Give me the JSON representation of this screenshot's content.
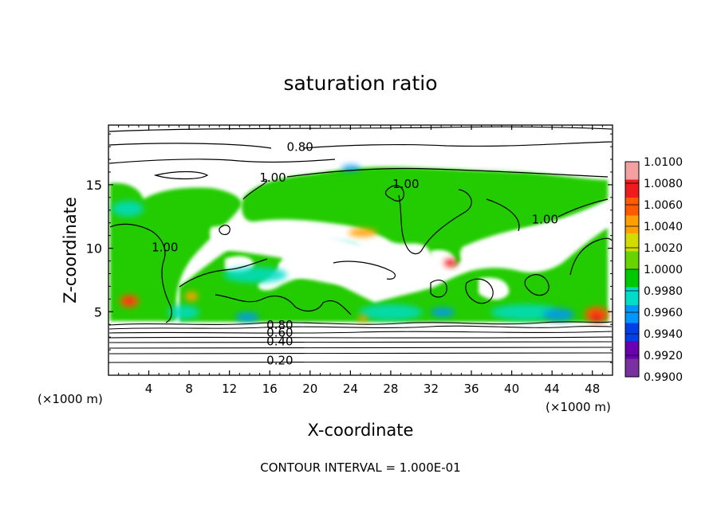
{
  "chart_data": {
    "type": "heatmap",
    "title": "saturation ratio",
    "xlabel": "X-coordinate",
    "ylabel": "Z-coordinate",
    "x_unit_left": "(×1000 m)",
    "x_unit_right": "(×1000 m)",
    "footer": "CONTOUR INTERVAL = 1.000E-01",
    "xlim": [
      0,
      50
    ],
    "ylim": [
      0,
      19.7
    ],
    "x_ticks": [
      "4",
      "8",
      "12",
      "16",
      "20",
      "24",
      "28",
      "32",
      "36",
      "40",
      "44",
      "48"
    ],
    "x_tick_values": [
      4,
      8,
      12,
      16,
      20,
      24,
      28,
      32,
      36,
      40,
      44,
      48
    ],
    "y_ticks": [
      "5",
      "10",
      "15"
    ],
    "y_tick_values": [
      5,
      10,
      15
    ],
    "colorbar": {
      "labels": [
        "1.0100",
        "1.0080",
        "1.0060",
        "1.0040",
        "1.0020",
        "1.0000",
        "0.9980",
        "0.9960",
        "0.9940",
        "0.9920",
        "0.9900"
      ],
      "colors": [
        "#f4a0a0",
        "#ee1c1c",
        "#ff5a00",
        "#ffa000",
        "#d2dc00",
        "#66d400",
        "#00c800",
        "#00dcc8",
        "#0096ff",
        "#0040e6",
        "#6a00b0",
        "#7a30a0"
      ]
    },
    "contour_labels": [
      {
        "text": "0.80",
        "x": 19.0,
        "z": 17.9
      },
      {
        "text": "1.00",
        "x": 16.3,
        "z": 15.5
      },
      {
        "text": "1.00",
        "x": 29.5,
        "z": 15.0
      },
      {
        "text": "1.00",
        "x": 43.3,
        "z": 12.2
      },
      {
        "text": "1.00",
        "x": 5.6,
        "z": 10.0
      },
      {
        "text": "0.80",
        "x": 17.0,
        "z": 3.9
      },
      {
        "text": "0.60",
        "x": 17.0,
        "z": 3.3
      },
      {
        "text": "0.40",
        "x": 17.0,
        "z": 2.6
      },
      {
        "text": "0.20",
        "x": 17.0,
        "z": 1.1
      }
    ]
  }
}
